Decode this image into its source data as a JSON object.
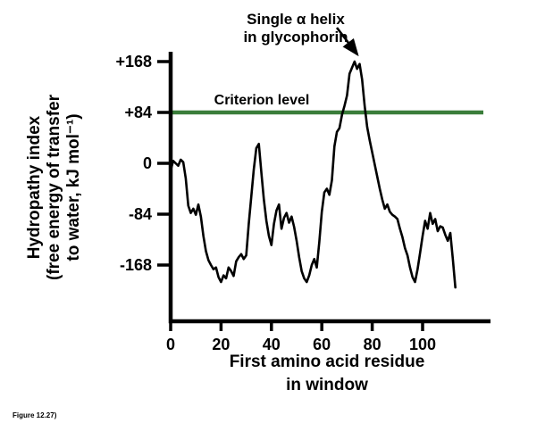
{
  "figure_caption": "Figure 12.27)",
  "chart_data": {
    "type": "line",
    "title": "",
    "annotation": {
      "lines": [
        "Single α helix",
        "in glycophorin"
      ],
      "points_to_x": 74,
      "points_to_y": 168
    },
    "criterion": {
      "label": "Criterion level",
      "value": 84,
      "color": "#3a7d3a"
    },
    "xlabel_lines": [
      "First amino acid residue",
      "in window"
    ],
    "ylabel_lines": [
      "Hydropathy index",
      "(free energy of transfer",
      "to water, kJ mol⁻¹)"
    ],
    "xlabel": "First amino acid residue in window",
    "ylabel": "Hydropathy index (free energy of transfer to water, kJ mol⁻¹)",
    "x_ticks": [
      {
        "value": 0,
        "label": "0"
      },
      {
        "value": 20,
        "label": "20"
      },
      {
        "value": 40,
        "label": "40"
      },
      {
        "value": 60,
        "label": "60"
      },
      {
        "value": 80,
        "label": "80"
      },
      {
        "value": 100,
        "label": "100"
      }
    ],
    "y_ticks": [
      {
        "value": 168,
        "label": "+168"
      },
      {
        "value": 84,
        "label": "+84"
      },
      {
        "value": 0,
        "label": "0"
      },
      {
        "value": -84,
        "label": "-84"
      },
      {
        "value": -168,
        "label": "-168"
      }
    ],
    "xlim": [
      0,
      125
    ],
    "ylim": [
      -260,
      200
    ],
    "line_color": "#000000",
    "series": [
      {
        "name": "hydropathy",
        "points": [
          [
            0,
            -12
          ],
          [
            1,
            4
          ],
          [
            2,
            0
          ],
          [
            3,
            -4
          ],
          [
            4,
            6
          ],
          [
            5,
            2
          ],
          [
            6,
            -25
          ],
          [
            7,
            -70
          ],
          [
            8,
            -82
          ],
          [
            9,
            -75
          ],
          [
            10,
            -85
          ],
          [
            11,
            -68
          ],
          [
            12,
            -88
          ],
          [
            13,
            -120
          ],
          [
            14,
            -145
          ],
          [
            15,
            -160
          ],
          [
            16,
            -168
          ],
          [
            17,
            -175
          ],
          [
            18,
            -172
          ],
          [
            19,
            -188
          ],
          [
            20,
            -196
          ],
          [
            21,
            -185
          ],
          [
            22,
            -190
          ],
          [
            23,
            -172
          ],
          [
            24,
            -178
          ],
          [
            25,
            -186
          ],
          [
            26,
            -162
          ],
          [
            27,
            -155
          ],
          [
            28,
            -150
          ],
          [
            29,
            -158
          ],
          [
            30,
            -152
          ],
          [
            31,
            -100
          ],
          [
            32,
            -55
          ],
          [
            33,
            -10
          ],
          [
            34,
            25
          ],
          [
            35,
            32
          ],
          [
            36,
            -15
          ],
          [
            37,
            -60
          ],
          [
            38,
            -95
          ],
          [
            39,
            -120
          ],
          [
            40,
            -135
          ],
          [
            41,
            -100
          ],
          [
            42,
            -78
          ],
          [
            43,
            -68
          ],
          [
            44,
            -108
          ],
          [
            45,
            -90
          ],
          [
            46,
            -82
          ],
          [
            47,
            -98
          ],
          [
            48,
            -88
          ],
          [
            49,
            -105
          ],
          [
            50,
            -128
          ],
          [
            51,
            -155
          ],
          [
            52,
            -178
          ],
          [
            53,
            -190
          ],
          [
            54,
            -196
          ],
          [
            55,
            -185
          ],
          [
            56,
            -168
          ],
          [
            57,
            -158
          ],
          [
            58,
            -172
          ],
          [
            59,
            -130
          ],
          [
            60,
            -80
          ],
          [
            61,
            -48
          ],
          [
            62,
            -42
          ],
          [
            63,
            -52
          ],
          [
            64,
            -28
          ],
          [
            65,
            28
          ],
          [
            66,
            52
          ],
          [
            67,
            58
          ],
          [
            68,
            80
          ],
          [
            69,
            95
          ],
          [
            70,
            112
          ],
          [
            71,
            148
          ],
          [
            72,
            158
          ],
          [
            73,
            168
          ],
          [
            74,
            156
          ],
          [
            75,
            164
          ],
          [
            76,
            138
          ],
          [
            77,
            95
          ],
          [
            78,
            60
          ],
          [
            79,
            38
          ],
          [
            80,
            18
          ],
          [
            81,
            -2
          ],
          [
            82,
            -22
          ],
          [
            83,
            -42
          ],
          [
            84,
            -60
          ],
          [
            85,
            -75
          ],
          [
            86,
            -68
          ],
          [
            87,
            -80
          ],
          [
            88,
            -85
          ],
          [
            89,
            -88
          ],
          [
            90,
            -92
          ],
          [
            91,
            -108
          ],
          [
            92,
            -122
          ],
          [
            93,
            -140
          ],
          [
            94,
            -152
          ],
          [
            95,
            -172
          ],
          [
            96,
            -188
          ],
          [
            97,
            -196
          ],
          [
            98,
            -175
          ],
          [
            99,
            -148
          ],
          [
            100,
            -120
          ],
          [
            101,
            -95
          ],
          [
            102,
            -108
          ],
          [
            103,
            -82
          ],
          [
            104,
            -100
          ],
          [
            105,
            -92
          ],
          [
            106,
            -112
          ],
          [
            107,
            -104
          ],
          [
            108,
            -106
          ],
          [
            109,
            -118
          ],
          [
            110,
            -128
          ],
          [
            111,
            -115
          ],
          [
            112,
            -158
          ],
          [
            113,
            -205
          ]
        ]
      }
    ]
  }
}
